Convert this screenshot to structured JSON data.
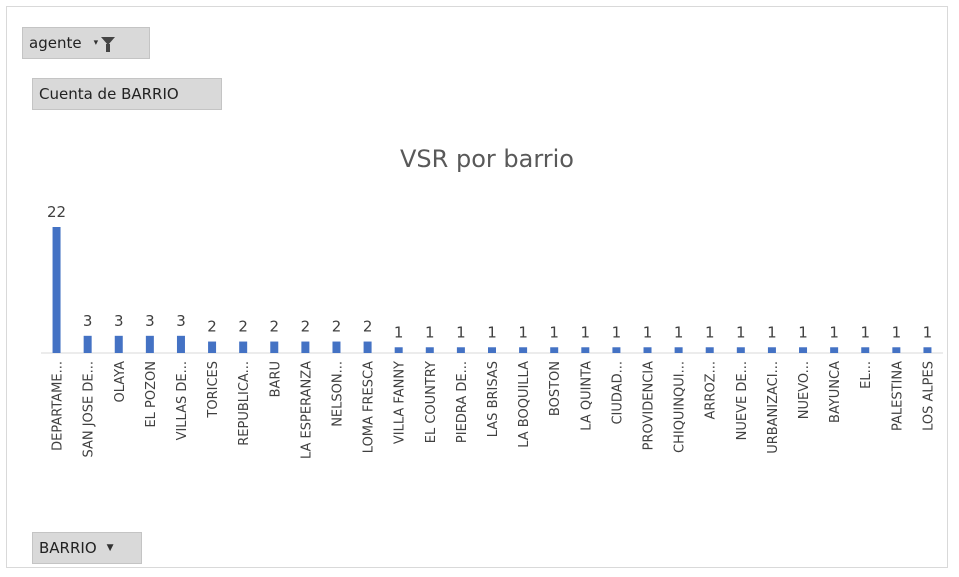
{
  "filter_button": {
    "label": "agente",
    "arrow": "▾",
    "icon": "funnel-icon"
  },
  "value_button": {
    "label": "Cuenta de BARRIO"
  },
  "axis_button": {
    "label": "BARRIO",
    "arrow": "▼"
  },
  "chart_data": {
    "type": "bar",
    "title": "VSR por barrio",
    "xlabel": "",
    "ylabel": "",
    "ylim": [
      0,
      22
    ],
    "grid": false,
    "legend": "none",
    "bar_color": "#4472c4",
    "categories": [
      "DEPARTAME...",
      "SAN JOSE DE...",
      "OLAYA",
      "EL POZON",
      "VILLAS DE...",
      "TORICES",
      "REPUBLICA...",
      "BARU",
      "LA ESPERANZA",
      "NELSON...",
      "LOMA FRESCA",
      "VILLA FANNY",
      "EL COUNTRY",
      "PIEDRA DE...",
      "LAS BRISAS",
      "LA BOQUILLA",
      "BOSTON",
      "LA QUINTA",
      "CIUDAD...",
      "PROVIDENCIA",
      "CHIQUINQUI...",
      "ARROZ...",
      "NUEVE DE...",
      "URBANIZACI...",
      "NUEVO...",
      "BAYUNCA",
      "EL...",
      "PALESTINA",
      "LOS ALPES"
    ],
    "values": [
      22,
      3,
      3,
      3,
      3,
      2,
      2,
      2,
      2,
      2,
      2,
      1,
      1,
      1,
      1,
      1,
      1,
      1,
      1,
      1,
      1,
      1,
      1,
      1,
      1,
      1,
      1,
      1,
      1
    ]
  }
}
